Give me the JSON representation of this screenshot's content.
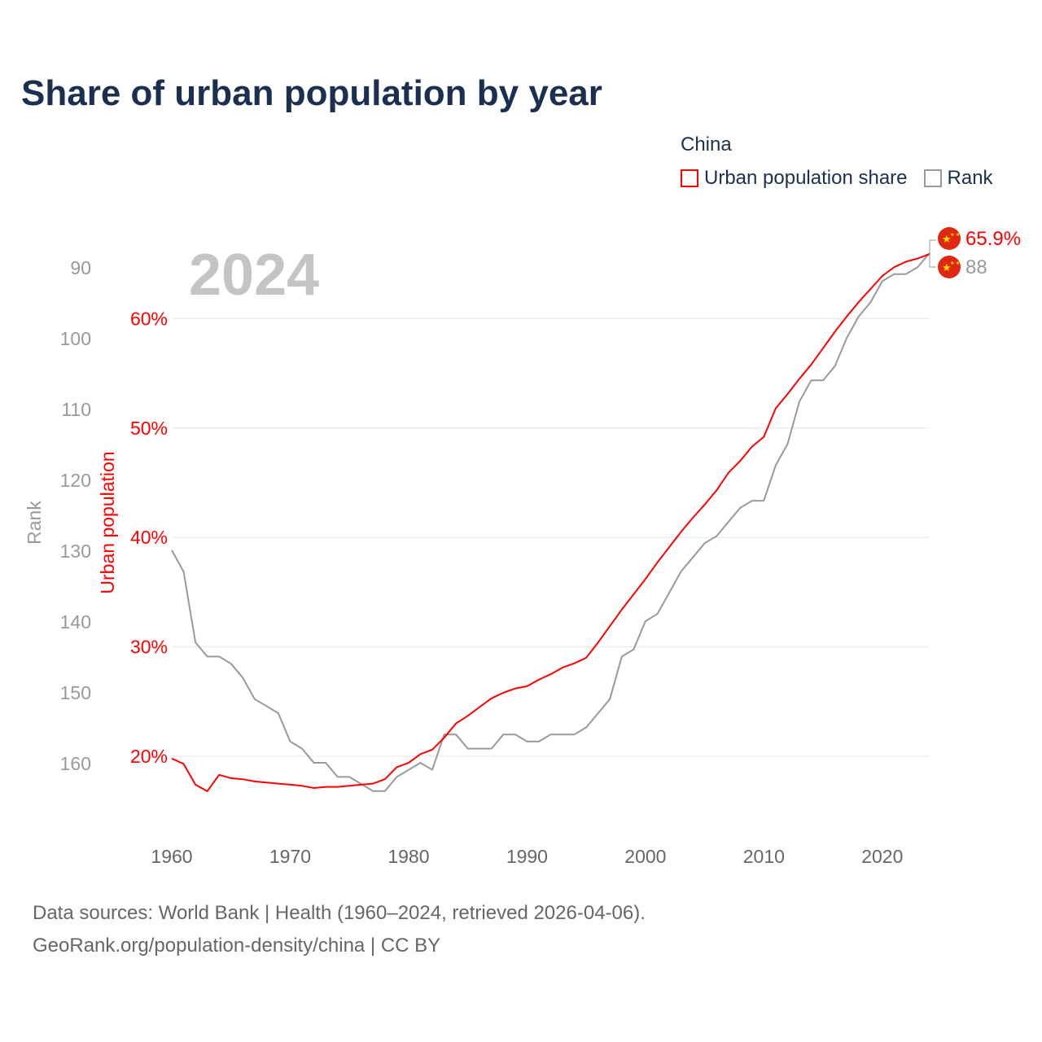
{
  "title": "Share of urban population by year",
  "legend": {
    "title": "China",
    "items": [
      {
        "label": "Urban population share",
        "color": "#ff0000"
      },
      {
        "label": "Rank",
        "color": "#999999"
      }
    ]
  },
  "year_label": "2024",
  "end_labels": {
    "share": "65.9%",
    "rank": "88",
    "flag_icon": "china-flag-icon"
  },
  "source": {
    "line1": "Data sources: World Bank | Health (1960–2024, retrieved 2026-04-06).",
    "line2": "GeoRank.org/population-density/china | CC BY"
  },
  "chart_data": {
    "type": "line",
    "title": "Share of urban population by year",
    "xlabel": "",
    "ylabel": "Urban population",
    "ylabel2": "Rank",
    "xlim": [
      1960,
      2024
    ],
    "ylim": [
      13.6,
      72
    ],
    "ylim2_inverted": [
      80,
      168
    ],
    "x_ticks": [
      1960,
      1970,
      1980,
      1990,
      2000,
      2010,
      2020
    ],
    "y_ticks": [
      {
        "v": 20,
        "label": "20%"
      },
      {
        "v": 30,
        "label": "30%"
      },
      {
        "v": 40,
        "label": "40%"
      },
      {
        "v": 50,
        "label": "50%"
      },
      {
        "v": 60,
        "label": "60%"
      }
    ],
    "y2_ticks": [
      90,
      100,
      110,
      120,
      130,
      140,
      150,
      160
    ],
    "grid": true,
    "legend_position": "top-right",
    "x": [
      1960,
      1961,
      1962,
      1963,
      1964,
      1965,
      1966,
      1967,
      1968,
      1969,
      1970,
      1971,
      1972,
      1973,
      1974,
      1975,
      1976,
      1977,
      1978,
      1979,
      1980,
      1981,
      1982,
      1983,
      1984,
      1985,
      1986,
      1987,
      1988,
      1989,
      1990,
      1991,
      1992,
      1993,
      1994,
      1995,
      1996,
      1997,
      1998,
      1999,
      2000,
      2001,
      2002,
      2003,
      2004,
      2005,
      2006,
      2007,
      2008,
      2009,
      2010,
      2011,
      2012,
      2013,
      2014,
      2015,
      2016,
      2017,
      2018,
      2019,
      2020,
      2021,
      2022,
      2023,
      2024
    ],
    "series": [
      {
        "name": "Urban population share",
        "color": "#ff0000",
        "axis": "left",
        "values": [
          19.8,
          19.3,
          17.4,
          16.8,
          18.3,
          18.0,
          17.9,
          17.7,
          17.6,
          17.5,
          17.4,
          17.3,
          17.1,
          17.2,
          17.2,
          17.3,
          17.4,
          17.5,
          17.9,
          19.0,
          19.4,
          20.2,
          20.6,
          21.7,
          23.0,
          23.7,
          24.5,
          25.3,
          25.8,
          26.2,
          26.4,
          27.0,
          27.5,
          28.1,
          28.5,
          29.0,
          30.4,
          31.9,
          33.4,
          34.8,
          36.2,
          37.7,
          39.1,
          40.5,
          41.8,
          43.0,
          44.3,
          45.9,
          47.0,
          48.3,
          49.2,
          51.8,
          53.1,
          54.5,
          55.8,
          57.3,
          58.8,
          60.2,
          61.5,
          62.7,
          63.9,
          64.7,
          65.2,
          65.5,
          65.9
        ]
      },
      {
        "name": "Rank",
        "color": "#999999",
        "axis": "right",
        "values": [
          130,
          133,
          143,
          145,
          145,
          146,
          148,
          151,
          152,
          153,
          157,
          158,
          160,
          160,
          162,
          162,
          163,
          164,
          164,
          162,
          161,
          160,
          161,
          156,
          156,
          158,
          158,
          158,
          156,
          156,
          157,
          157,
          156,
          156,
          156,
          155,
          153,
          151,
          145,
          144,
          140,
          139,
          136,
          133,
          131,
          129,
          128,
          126,
          124,
          123,
          123,
          118,
          115,
          109,
          106,
          106,
          104,
          100,
          97,
          95,
          92,
          91,
          91,
          90,
          88
        ]
      }
    ]
  }
}
